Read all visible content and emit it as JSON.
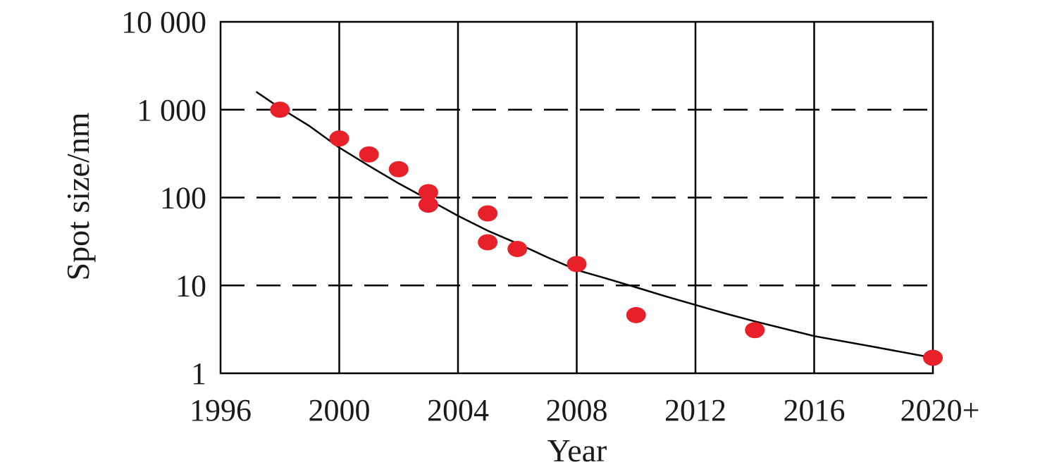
{
  "chart_data": {
    "type": "scatter",
    "title": "",
    "xlabel": "Year",
    "ylabel": "Spot size/nm",
    "x_ticks": [
      {
        "value": 1996,
        "label": "1996"
      },
      {
        "value": 2000,
        "label": "2000"
      },
      {
        "value": 2004,
        "label": "2004"
      },
      {
        "value": 2008,
        "label": "2008"
      },
      {
        "value": 2012,
        "label": "2012"
      },
      {
        "value": 2016,
        "label": "2016"
      },
      {
        "value": 2020,
        "label": "2020+"
      }
    ],
    "y_ticks": [
      {
        "value": 1,
        "label": "1"
      },
      {
        "value": 10,
        "label": "10"
      },
      {
        "value": 100,
        "label": "100"
      },
      {
        "value": 1000,
        "label": "1 000"
      },
      {
        "value": 10000,
        "label": "10 000"
      }
    ],
    "xlim": [
      1996,
      2020
    ],
    "ylim": [
      1,
      10000
    ],
    "y_scale": "log",
    "grid": {
      "x": "solid",
      "y": "dashed"
    },
    "points_color": "#e8202a",
    "line_color": "#000000",
    "points": [
      {
        "x": 1998,
        "y": 1000
      },
      {
        "x": 2000,
        "y": 470
      },
      {
        "x": 2001,
        "y": 310
      },
      {
        "x": 2002,
        "y": 210
      },
      {
        "x": 2003,
        "y": 115
      },
      {
        "x": 2003,
        "y": 83
      },
      {
        "x": 2005,
        "y": 66
      },
      {
        "x": 2005,
        "y": 31
      },
      {
        "x": 2006,
        "y": 26
      },
      {
        "x": 2008,
        "y": 17.5
      },
      {
        "x": 2010,
        "y": 4.6
      },
      {
        "x": 2014,
        "y": 3.1
      },
      {
        "x": 2020,
        "y": 1.5
      }
    ],
    "trend_line": [
      {
        "x": 1997.2,
        "y": 1600
      },
      {
        "x": 1998,
        "y": 1050
      },
      {
        "x": 1999,
        "y": 650
      },
      {
        "x": 2000,
        "y": 370
      },
      {
        "x": 2001,
        "y": 230
      },
      {
        "x": 2002,
        "y": 145
      },
      {
        "x": 2003,
        "y": 95
      },
      {
        "x": 2004,
        "y": 62
      },
      {
        "x": 2005,
        "y": 42
      },
      {
        "x": 2006,
        "y": 30
      },
      {
        "x": 2007,
        "y": 21
      },
      {
        "x": 2008,
        "y": 15
      },
      {
        "x": 2009,
        "y": 12
      },
      {
        "x": 2010,
        "y": 9.5
      },
      {
        "x": 2011,
        "y": 7.5
      },
      {
        "x": 2012,
        "y": 6
      },
      {
        "x": 2013,
        "y": 4.8
      },
      {
        "x": 2014,
        "y": 3.9
      },
      {
        "x": 2016,
        "y": 2.65
      },
      {
        "x": 2018,
        "y": 2
      },
      {
        "x": 2020,
        "y": 1.5
      }
    ]
  }
}
